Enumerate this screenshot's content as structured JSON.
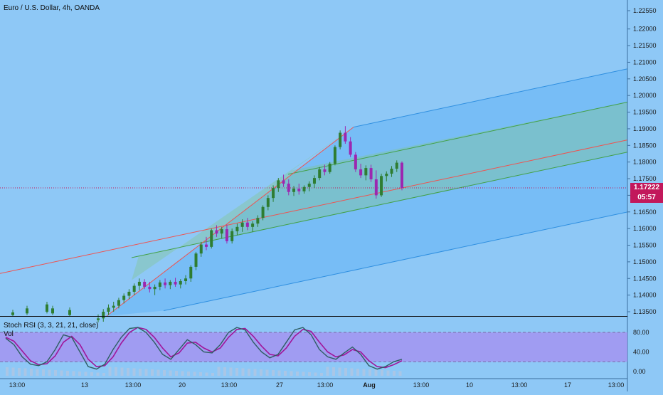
{
  "header": {
    "symbol_title": "Euro / U.S. Dollar, 4h, OANDA"
  },
  "price_tags": {
    "last_price": "1.17222",
    "countdown": "05:57"
  },
  "indicator": {
    "stoch_title": "Stoch RSI (3, 3, 21, 21, close)",
    "vol_label": "Vol"
  },
  "colors": {
    "background": "#8ec8f6",
    "outer_channel": "#64b5f6",
    "inner_channel": "#81c784",
    "median_line": "#ef5350",
    "bull_candle": "#2e7d32",
    "bear_candle": "#9c27b0",
    "last_price_tag": "#c2185b",
    "stoch_band": "#a58ef0",
    "k_line": "#2e5e63",
    "d_line": "#a0159a"
  },
  "chart_data": [
    {
      "type": "candlestick",
      "title": "Euro / U.S. Dollar, 4h, OANDA",
      "y_axis_ticks": [
        "1.22550",
        "1.22000",
        "1.21500",
        "1.21000",
        "1.20500",
        "1.20000",
        "1.19500",
        "1.19000",
        "1.18500",
        "1.18000",
        "1.17500",
        "1.17000",
        "1.16500",
        "1.16000",
        "1.15500",
        "1.15000",
        "1.14500",
        "1.14000",
        "1.13500"
      ],
      "x_axis_ticks": [
        "13:00",
        "13",
        "13:00",
        "20",
        "13:00",
        "27",
        "13:00",
        "Aug",
        "13:00",
        "10",
        "13:00",
        "17",
        "13:00"
      ],
      "last_price": 1.17222,
      "pitchfork": {
        "median": "red line through pivot ~1.1900",
        "inner_band": "green lines",
        "outer_band": "blue lines"
      },
      "candles_approx": [
        {
          "o": 1.1325,
          "h": 1.1342,
          "l": 1.1318,
          "c": 1.133
        },
        {
          "o": 1.133,
          "h": 1.1358,
          "l": 1.132,
          "c": 1.135
        },
        {
          "o": 1.135,
          "h": 1.1372,
          "l": 1.134,
          "c": 1.1362
        },
        {
          "o": 1.1362,
          "h": 1.138,
          "l": 1.135,
          "c": 1.1368
        },
        {
          "o": 1.1368,
          "h": 1.1392,
          "l": 1.136,
          "c": 1.1385
        },
        {
          "o": 1.1385,
          "h": 1.1405,
          "l": 1.1375,
          "c": 1.1398
        },
        {
          "o": 1.1398,
          "h": 1.1418,
          "l": 1.1388,
          "c": 1.141
        },
        {
          "o": 1.141,
          "h": 1.1435,
          "l": 1.14,
          "c": 1.1428
        },
        {
          "o": 1.1428,
          "h": 1.145,
          "l": 1.1415,
          "c": 1.144
        },
        {
          "o": 1.144,
          "h": 1.1448,
          "l": 1.1418,
          "c": 1.1425
        },
        {
          "o": 1.1425,
          "h": 1.144,
          "l": 1.1408,
          "c": 1.1418
        },
        {
          "o": 1.1418,
          "h": 1.1432,
          "l": 1.14,
          "c": 1.1425
        },
        {
          "o": 1.1425,
          "h": 1.1445,
          "l": 1.1415,
          "c": 1.1438
        },
        {
          "o": 1.1438,
          "h": 1.145,
          "l": 1.142,
          "c": 1.143
        },
        {
          "o": 1.143,
          "h": 1.1445,
          "l": 1.1418,
          "c": 1.144
        },
        {
          "o": 1.144,
          "h": 1.1452,
          "l": 1.1425,
          "c": 1.1432
        },
        {
          "o": 1.1432,
          "h": 1.1448,
          "l": 1.142,
          "c": 1.1442
        },
        {
          "o": 1.1442,
          "h": 1.146,
          "l": 1.1432,
          "c": 1.145
        },
        {
          "o": 1.145,
          "h": 1.149,
          "l": 1.144,
          "c": 1.1485
        },
        {
          "o": 1.1485,
          "h": 1.153,
          "l": 1.1475,
          "c": 1.1525
        },
        {
          "o": 1.1525,
          "h": 1.156,
          "l": 1.1515,
          "c": 1.1552
        },
        {
          "o": 1.1552,
          "h": 1.1575,
          "l": 1.1535,
          "c": 1.1545
        },
        {
          "o": 1.1545,
          "h": 1.16,
          "l": 1.154,
          "c": 1.1595
        },
        {
          "o": 1.1595,
          "h": 1.161,
          "l": 1.1575,
          "c": 1.1585
        },
        {
          "o": 1.1585,
          "h": 1.1605,
          "l": 1.157,
          "c": 1.1598
        },
        {
          "o": 1.1598,
          "h": 1.1612,
          "l": 1.1555,
          "c": 1.1562
        },
        {
          "o": 1.1562,
          "h": 1.16,
          "l": 1.1555,
          "c": 1.1592
        },
        {
          "o": 1.1592,
          "h": 1.1615,
          "l": 1.158,
          "c": 1.1605
        },
        {
          "o": 1.1605,
          "h": 1.1628,
          "l": 1.159,
          "c": 1.1618
        },
        {
          "o": 1.1618,
          "h": 1.1632,
          "l": 1.1595,
          "c": 1.1605
        },
        {
          "o": 1.1605,
          "h": 1.1622,
          "l": 1.159,
          "c": 1.1615
        },
        {
          "o": 1.1615,
          "h": 1.164,
          "l": 1.1605,
          "c": 1.1632
        },
        {
          "o": 1.1632,
          "h": 1.167,
          "l": 1.1625,
          "c": 1.1665
        },
        {
          "o": 1.1665,
          "h": 1.17,
          "l": 1.1655,
          "c": 1.1692
        },
        {
          "o": 1.1692,
          "h": 1.173,
          "l": 1.168,
          "c": 1.1722
        },
        {
          "o": 1.1722,
          "h": 1.1752,
          "l": 1.171,
          "c": 1.1745
        },
        {
          "o": 1.1745,
          "h": 1.1762,
          "l": 1.1725,
          "c": 1.1735
        },
        {
          "o": 1.1735,
          "h": 1.1748,
          "l": 1.17,
          "c": 1.171
        },
        {
          "o": 1.171,
          "h": 1.1728,
          "l": 1.1698,
          "c": 1.172
        },
        {
          "o": 1.172,
          "h": 1.1735,
          "l": 1.1702,
          "c": 1.1712
        },
        {
          "o": 1.1712,
          "h": 1.173,
          "l": 1.1705,
          "c": 1.1725
        },
        {
          "o": 1.1725,
          "h": 1.1742,
          "l": 1.1712,
          "c": 1.1735
        },
        {
          "o": 1.1735,
          "h": 1.176,
          "l": 1.1722,
          "c": 1.1752
        },
        {
          "o": 1.1752,
          "h": 1.1785,
          "l": 1.1745,
          "c": 1.1778
        },
        {
          "o": 1.1778,
          "h": 1.1792,
          "l": 1.176,
          "c": 1.177
        },
        {
          "o": 1.177,
          "h": 1.18,
          "l": 1.1765,
          "c": 1.1795
        },
        {
          "o": 1.1795,
          "h": 1.185,
          "l": 1.179,
          "c": 1.1845
        },
        {
          "o": 1.1845,
          "h": 1.1895,
          "l": 1.1838,
          "c": 1.1888
        },
        {
          "o": 1.1888,
          "h": 1.1908,
          "l": 1.1855,
          "c": 1.1862
        },
        {
          "o": 1.1862,
          "h": 1.1875,
          "l": 1.1815,
          "c": 1.1822
        },
        {
          "o": 1.1822,
          "h": 1.183,
          "l": 1.177,
          "c": 1.1778
        },
        {
          "o": 1.1778,
          "h": 1.1795,
          "l": 1.1752,
          "c": 1.176
        },
        {
          "o": 1.176,
          "h": 1.179,
          "l": 1.1745,
          "c": 1.1782
        },
        {
          "o": 1.1782,
          "h": 1.1792,
          "l": 1.174,
          "c": 1.1748
        },
        {
          "o": 1.1748,
          "h": 1.1775,
          "l": 1.169,
          "c": 1.17
        },
        {
          "o": 1.17,
          "h": 1.1765,
          "l": 1.1695,
          "c": 1.1758
        },
        {
          "o": 1.1758,
          "h": 1.1772,
          "l": 1.1742,
          "c": 1.1765
        },
        {
          "o": 1.1765,
          "h": 1.1788,
          "l": 1.1755,
          "c": 1.178
        },
        {
          "o": 1.178,
          "h": 1.1805,
          "l": 1.177,
          "c": 1.1798
        },
        {
          "o": 1.1798,
          "h": 1.1802,
          "l": 1.1715,
          "c": 1.17222
        }
      ]
    },
    {
      "type": "line",
      "title": "Stoch RSI (3, 3, 21, 21, close)",
      "y_axis_ticks": [
        "80.00",
        "40.00",
        "0.00"
      ],
      "band": [
        20,
        80
      ],
      "series": [
        {
          "values": [
            68,
            55,
            30,
            15,
            12,
            20,
            45,
            75,
            70,
            40,
            10,
            5,
            15,
            45,
            70,
            88,
            90,
            80,
            60,
            35,
            25,
            45,
            65,
            55,
            40,
            38,
            55,
            80,
            90,
            85,
            60,
            40,
            28,
            35,
            60,
            85,
            90,
            75,
            45,
            30,
            25,
            38,
            50,
            35,
            12,
            5,
            10,
            20,
            25
          ]
        },
        {
          "values": [
            70,
            62,
            42,
            22,
            14,
            16,
            32,
            60,
            72,
            55,
            25,
            10,
            12,
            30,
            58,
            80,
            90,
            86,
            70,
            48,
            30,
            38,
            58,
            60,
            48,
            40,
            48,
            70,
            86,
            88,
            72,
            52,
            35,
            32,
            48,
            72,
            86,
            82,
            60,
            40,
            30,
            34,
            45,
            40,
            22,
            10,
            8,
            14,
            22
          ]
        }
      ]
    }
  ]
}
